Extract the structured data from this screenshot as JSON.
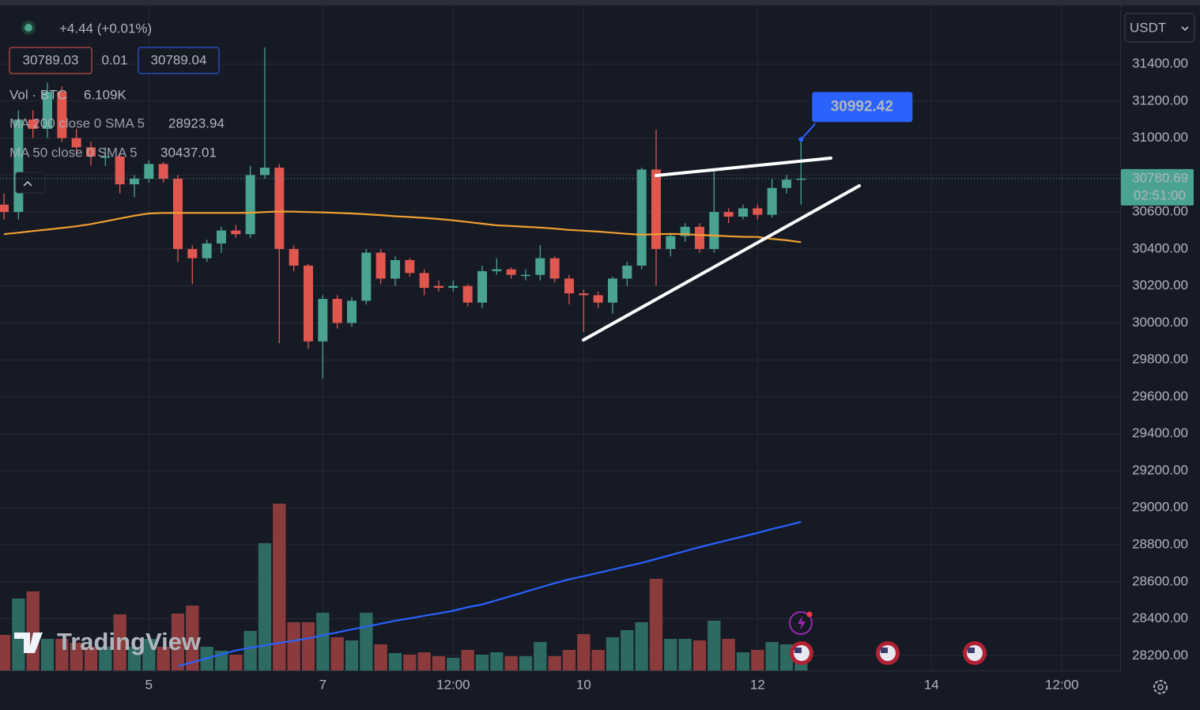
{
  "chart_data": {
    "type": "candlestick",
    "currency": "USDT",
    "change": "+4.44 (+0.01%)",
    "bid": "30789.03",
    "spread": "0.01",
    "ask": "30789.04",
    "countdown": "02:51:00",
    "brand": "TradingView",
    "categories": [
      null,
      null,
      null,
      null,
      null,
      null,
      null,
      null,
      null,
      null,
      "5",
      null,
      null,
      null,
      null,
      null,
      null,
      null,
      null,
      null,
      null,
      null,
      "7",
      null,
      null,
      null,
      null,
      null,
      null,
      null,
      null,
      "12:00",
      null,
      null,
      null,
      null,
      null,
      null,
      null,
      null,
      "10",
      null,
      null,
      null,
      null,
      null,
      null,
      null,
      null,
      null,
      null,
      null,
      "12",
      null,
      null,
      null,
      null,
      null,
      null,
      null,
      null,
      null,
      null,
      null,
      "14",
      null,
      null,
      null,
      null,
      null,
      null,
      null,
      null,
      "12:00"
    ],
    "open": [
      30640,
      30600,
      31100,
      31050,
      31250,
      31000,
      30950,
      30900,
      30900,
      30750,
      30780,
      30860,
      30780,
      30400,
      30350,
      30430,
      30500,
      30480,
      30800,
      30840,
      30400,
      30310,
      29900,
      30130,
      30000,
      30120,
      30380,
      30240,
      30340,
      30270,
      30200,
      30190,
      30200,
      30110,
      30280,
      30290,
      30255,
      30260,
      30350,
      30240,
      30160,
      30150,
      30110,
      30240,
      30310,
      30830,
      30400,
      30470,
      30520,
      30400,
      30600,
      30575,
      30620,
      30585,
      30730,
      30775,
      null,
      null,
      null,
      null,
      null,
      null,
      null,
      null,
      null,
      null,
      null,
      null,
      null,
      null,
      null,
      null,
      null,
      null
    ],
    "high": [
      30700,
      31150,
      31150,
      31300,
      31280,
      31050,
      30980,
      30950,
      30920,
      30800,
      30880,
      30870,
      30800,
      30420,
      30450,
      30520,
      30530,
      30850,
      31490,
      30860,
      30420,
      30320,
      30150,
      30150,
      30140,
      30400,
      30400,
      30360,
      30350,
      30290,
      30230,
      30230,
      30210,
      30310,
      30350,
      30300,
      30290,
      30420,
      30360,
      30260,
      30180,
      30170,
      30250,
      30330,
      30840,
      31045,
      30480,
      30540,
      30540,
      30820,
      30620,
      30640,
      30640,
      30780,
      30800,
      30992.42,
      null,
      null,
      null,
      null,
      null,
      null,
      null,
      null,
      null,
      null,
      null,
      null,
      null,
      null,
      null,
      null,
      null,
      null
    ],
    "low": [
      30560,
      30560,
      31000,
      31000,
      30980,
      30920,
      30850,
      30850,
      30700,
      30680,
      30760,
      30760,
      30330,
      30210,
      30330,
      30380,
      30460,
      30460,
      30780,
      29890,
      30280,
      29860,
      29700,
      29970,
      29980,
      30100,
      30210,
      30200,
      30250,
      30150,
      30170,
      30170,
      30090,
      30080,
      30260,
      30240,
      30230,
      30230,
      30220,
      30100,
      29950,
      30080,
      30050,
      30200,
      30290,
      30200,
      30360,
      30440,
      30380,
      30380,
      30540,
      30560,
      30560,
      30570,
      30700,
      30640,
      null,
      null,
      null,
      null,
      null,
      null,
      null,
      null,
      null,
      null,
      null,
      null,
      null,
      null,
      null,
      null,
      null,
      null
    ],
    "close": [
      30600,
      31100,
      31050,
      31250,
      31000,
      30950,
      30900,
      30900,
      30750,
      30780,
      30860,
      30780,
      30400,
      30350,
      30430,
      30500,
      30480,
      30800,
      30840,
      30400,
      30310,
      29900,
      30130,
      30000,
      30120,
      30380,
      30240,
      30340,
      30270,
      30190,
      30190,
      30200,
      30110,
      30280,
      30290,
      30260,
      30260,
      30350,
      30240,
      30160,
      30150,
      30110,
      30240,
      30310,
      30830,
      30400,
      30470,
      30520,
      30400,
      30600,
      30575,
      30620,
      30585,
      30730,
      30775,
      30780.69,
      null,
      null,
      null,
      null,
      null,
      null,
      null,
      null,
      null,
      null,
      null,
      null,
      null,
      null,
      null,
      null,
      null,
      null
    ],
    "up_color": "#4aa391",
    "down_color": "#e0574f",
    "volume": {
      "name": "Vol · BTC",
      "values": [
        9000,
        18200,
        20000,
        8000,
        8000,
        7000,
        6000,
        6000,
        14200,
        6000,
        8000,
        6000,
        14400,
        16400,
        6000,
        5000,
        4000,
        10000,
        32200,
        42200,
        12200,
        12200,
        14600,
        8400,
        7600,
        14600,
        6600,
        4400,
        4000,
        4600,
        3600,
        3200,
        5200,
        4000,
        4600,
        3600,
        3600,
        7200,
        3600,
        5200,
        9200,
        5200,
        8400,
        10200,
        12200,
        23200,
        8000,
        8000,
        7600,
        12600,
        8000,
        4600,
        5200,
        7200,
        6600,
        6109,
        null,
        null,
        null,
        null,
        null,
        null,
        null,
        null,
        null,
        null,
        null,
        null,
        null,
        null,
        null,
        null,
        null,
        null
      ],
      "value_labels": [
        null,
        null,
        null,
        null,
        null,
        null,
        null,
        null,
        null,
        null,
        null,
        null,
        null,
        null,
        null,
        null,
        null,
        null,
        null,
        null,
        null,
        null,
        null,
        null,
        null,
        null,
        null,
        null,
        null,
        null,
        null,
        null,
        null,
        null,
        null,
        null,
        null,
        null,
        null,
        null,
        null,
        null,
        null,
        null,
        null,
        null,
        null,
        null,
        null,
        null,
        null,
        null,
        null,
        null,
        null,
        "6.109K",
        null,
        null,
        null,
        null,
        null,
        null,
        null,
        null,
        null,
        null,
        null,
        null,
        null,
        null,
        null,
        null,
        null,
        null
      ],
      "up_color": "#2d6a61",
      "down_color": "#8b3b3b"
    },
    "series": [
      {
        "name": "MA 200 close 0 SMA 5",
        "color": "#2962ff",
        "values": [
          null,
          null,
          null,
          null,
          null,
          null,
          null,
          null,
          null,
          null,
          null,
          null,
          28144,
          28164,
          28186,
          28207,
          28228,
          28243,
          28256,
          28269,
          28281,
          28294,
          28310,
          28326,
          28342,
          28357,
          28373,
          28389,
          28402,
          28416,
          28429,
          28443,
          28462,
          28477,
          28500,
          28523,
          28546,
          28569,
          28592,
          28613,
          28630,
          28648,
          28666,
          28684,
          28702,
          28723,
          28744,
          28766,
          28787,
          28807,
          28826,
          28845,
          28864,
          28885,
          28904,
          28923.94,
          null,
          null,
          null,
          null,
          null,
          null,
          null,
          null,
          null,
          null,
          null,
          null,
          null,
          null,
          null,
          null,
          null,
          null
        ]
      },
      {
        "name": "MA 50 close 0 SMA 5",
        "color": "#f0a030",
        "values": [
          30480,
          30488,
          30497,
          30505,
          30514,
          30523,
          30535,
          30550,
          30565,
          30580,
          30592,
          30595,
          30595,
          30595,
          30595,
          30595,
          30595,
          30596,
          30600,
          30603,
          30602,
          30600,
          30598,
          30595,
          30592,
          30588,
          30583,
          30577,
          30573,
          30568,
          30562,
          30555,
          30546,
          30537,
          30528,
          30524,
          30520,
          30516,
          30510,
          30503,
          30499,
          30494,
          30488,
          30482,
          30477,
          30480,
          30482,
          30480,
          30476,
          30473,
          30469,
          30466,
          30465,
          30455,
          30447,
          30437.01,
          null,
          null,
          null,
          null,
          null,
          null,
          null,
          null,
          null,
          null,
          null,
          null,
          null,
          null,
          null,
          null,
          null,
          null
        ]
      }
    ],
    "ylim": [
      28120,
      31717
    ],
    "yticks": [
      {
        "value": 28200,
        "label": "28200.00"
      },
      {
        "value": 28400,
        "label": "28400.00"
      },
      {
        "value": 28600,
        "label": "28600.00"
      },
      {
        "value": 28800,
        "label": "28800.00"
      },
      {
        "value": 29000,
        "label": "29000.00"
      },
      {
        "value": 29200,
        "label": "29200.00"
      },
      {
        "value": 29400,
        "label": "29400.00"
      },
      {
        "value": 29600,
        "label": "29600.00"
      },
      {
        "value": 29800,
        "label": "29800.00"
      },
      {
        "value": 30000,
        "label": "30000.00"
      },
      {
        "value": 30200,
        "label": "30200.00"
      },
      {
        "value": 30400,
        "label": "30400.00"
      },
      {
        "value": 30600,
        "label": "30600.00"
      },
      {
        "value": 30800,
        "label": "30800.00"
      },
      {
        "value": 31000,
        "label": "31000.00"
      },
      {
        "value": 31200,
        "label": "31200.00"
      },
      {
        "value": 31400,
        "label": "31400.00"
      }
    ],
    "grid": true
  }
}
